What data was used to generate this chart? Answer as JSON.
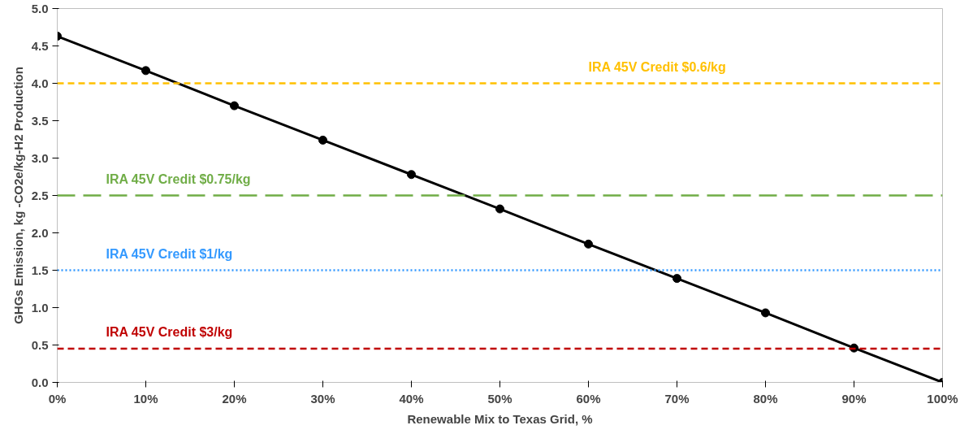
{
  "chart_data": {
    "type": "line",
    "xlabel": "Renewable Mix to Texas Grid, %",
    "ylabel": "GHGs Emission, kg -CO2e/kg-H2 Production",
    "x": [
      0,
      10,
      20,
      30,
      40,
      50,
      60,
      70,
      80,
      90,
      100
    ],
    "series": [
      {
        "color": "#000000",
        "values": [
          4.63,
          4.17,
          3.7,
          3.24,
          2.78,
          2.32,
          1.85,
          1.39,
          0.93,
          0.46,
          0.0
        ]
      }
    ],
    "marker": "circle",
    "line_style": "solid",
    "xlim": [
      0,
      100
    ],
    "xticks": [
      {
        "value": 0,
        "label": "0%"
      },
      {
        "value": 10,
        "label": "10%"
      },
      {
        "value": 20,
        "label": "20%"
      },
      {
        "value": 30,
        "label": "30%"
      },
      {
        "value": 40,
        "label": "40%"
      },
      {
        "value": 50,
        "label": "50%"
      },
      {
        "value": 60,
        "label": "60%"
      },
      {
        "value": 70,
        "label": "70%"
      },
      {
        "value": 80,
        "label": "80%"
      },
      {
        "value": 90,
        "label": "90%"
      },
      {
        "value": 100,
        "label": "100%"
      }
    ],
    "ylim": [
      0,
      5
    ],
    "yticks": [
      {
        "value": 0,
        "label": "0.0"
      },
      {
        "value": 0.5,
        "label": "0.5"
      },
      {
        "value": 1,
        "label": "1.0"
      },
      {
        "value": 1.5,
        "label": "1.5"
      },
      {
        "value": 2,
        "label": "2.0"
      },
      {
        "value": 2.5,
        "label": "2.5"
      },
      {
        "value": 3,
        "label": "3.0"
      },
      {
        "value": 3.5,
        "label": "3.5"
      },
      {
        "value": 4,
        "label": "4.0"
      },
      {
        "value": 4.5,
        "label": "4.5"
      },
      {
        "value": 5,
        "label": "5.0"
      }
    ],
    "ref_lines": [
      {
        "axis": "y",
        "value": 4.0,
        "label": "IRA 45V Credit $0.6/kg",
        "color": "#ffc000",
        "line_style": "dashed"
      },
      {
        "axis": "y",
        "value": 2.5,
        "label": "IRA 45V Credit $0.75/kg",
        "color": "#70ad47",
        "line_style": "longdashed"
      },
      {
        "axis": "y",
        "value": 1.5,
        "label": "IRA 45V Credit $1/kg",
        "color": "#3399ff",
        "line_style": "dotted"
      },
      {
        "axis": "y",
        "value": 0.45,
        "label": "IRA 45V Credit $3/kg",
        "color": "#c00000",
        "line_style": "dashed"
      }
    ]
  }
}
